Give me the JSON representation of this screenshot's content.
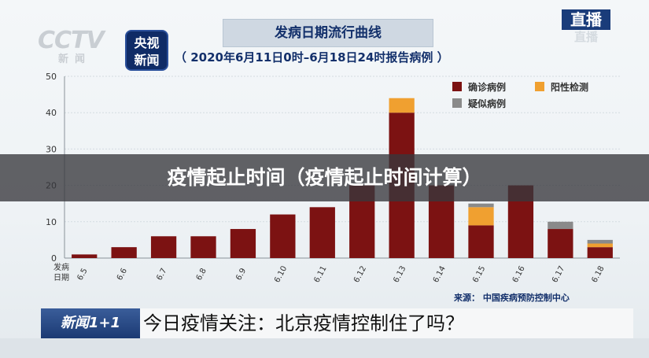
{
  "header": {
    "logo_cctv": "CCTV",
    "logo_cctv_sub": "新闻",
    "logo_news": [
      "央视",
      "新闻"
    ],
    "title": "发病日期流行曲线",
    "subtitle": "（ 2020年6月11日0时–6月18日24时报告病例 ）",
    "live_badge": "直播",
    "live_badge_ghost": "直播"
  },
  "overlay_title": "疫情起止时间（疫情起止时间计算）",
  "source": "来源：  中国疾病预防控制中心",
  "ticker": {
    "logo": "新闻1+1",
    "text": "今日疫情关注：北京疫情控制住了吗？"
  },
  "colors": {
    "confirmed": "#7c1212",
    "positive": "#f0a030",
    "suspected": "#8a8a8a",
    "title_text": "#13306b",
    "grid": "#d4dbe1",
    "axis_text": "#333333"
  },
  "chart_data": {
    "type": "bar",
    "stacked": true,
    "xlabel": "发病日期",
    "ylabel": "",
    "ylim": [
      0,
      50
    ],
    "yticks": [
      0,
      10,
      20,
      30,
      40,
      50
    ],
    "grid": true,
    "legend_position": "top-right",
    "categories": [
      "6.5",
      "6.6",
      "6.7",
      "6.8",
      "6.9",
      "6.10",
      "6.11",
      "6.12",
      "6.13",
      "6.14",
      "6.15",
      "6.16",
      "6.17",
      "6.18"
    ],
    "series": [
      {
        "name": "确诊病例",
        "color": "#7c1212",
        "values": [
          1,
          3,
          6,
          6,
          8,
          12,
          14,
          20,
          40,
          20,
          9,
          20,
          8,
          3
        ]
      },
      {
        "name": "阳性检测",
        "color": "#f0a030",
        "values": [
          0,
          0,
          0,
          0,
          0,
          0,
          0,
          0,
          4,
          0,
          5,
          0,
          0,
          1
        ]
      },
      {
        "name": "疑似病例",
        "color": "#8a8a8a",
        "values": [
          0,
          0,
          0,
          0,
          0,
          0,
          0,
          0,
          0,
          0,
          1,
          0,
          2,
          1
        ]
      }
    ]
  }
}
